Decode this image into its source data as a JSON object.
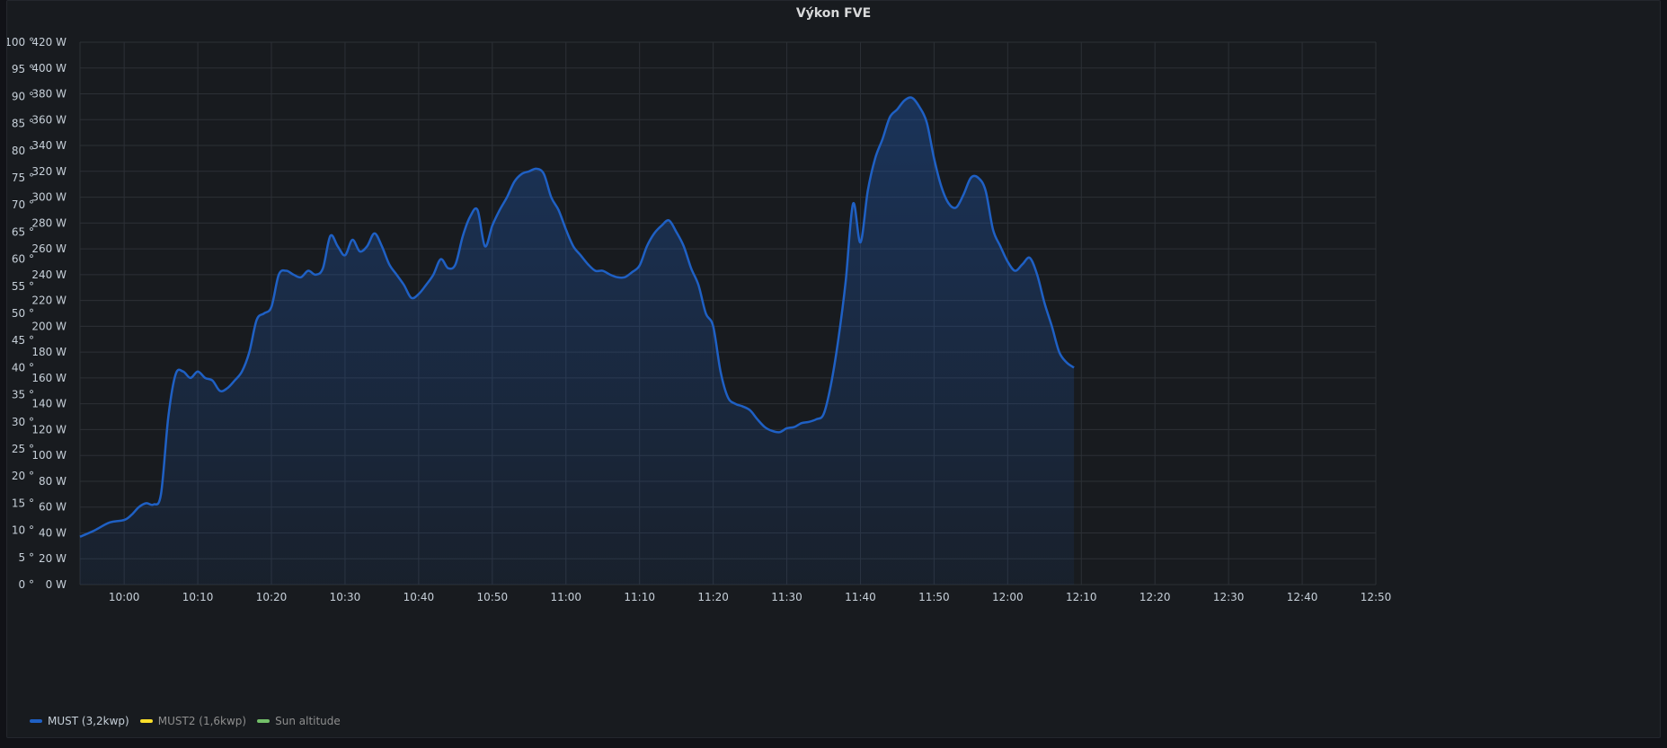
{
  "panel": {
    "title": "Výkon FVE"
  },
  "legend": [
    {
      "name": "MUST (3,2kwp)",
      "color": "#1f60c4",
      "active": true
    },
    {
      "name": "MUST2 (1,6kwp)",
      "color": "#fade2a",
      "active": false
    },
    {
      "name": "Sun altitude",
      "color": "#73bf69",
      "active": false
    }
  ],
  "chart_data": {
    "type": "area",
    "title": "Výkon FVE",
    "x_ticks": [
      "10:00",
      "10:10",
      "10:20",
      "10:30",
      "10:40",
      "10:50",
      "11:00",
      "11:10",
      "11:20",
      "11:30",
      "11:40",
      "11:50",
      "12:00",
      "12:10",
      "12:20",
      "12:30",
      "12:40",
      "12:50"
    ],
    "y_left": {
      "unit": "W",
      "ylim": [
        0,
        420
      ],
      "ticks": [
        0,
        20,
        40,
        60,
        80,
        100,
        120,
        140,
        160,
        180,
        200,
        220,
        240,
        260,
        280,
        300,
        320,
        340,
        360,
        380,
        400,
        420
      ]
    },
    "y_right": {
      "unit": "°",
      "ylim": [
        0,
        100
      ],
      "ticks": [
        0,
        5,
        10,
        15,
        20,
        25,
        30,
        35,
        40,
        45,
        50,
        55,
        60,
        65,
        70,
        75,
        80,
        85,
        90,
        95,
        100
      ]
    },
    "x_range": [
      "09:54",
      "12:50"
    ],
    "series": [
      {
        "name": "MUST (3,2kwp)",
        "color": "#1f60c4",
        "points": [
          [
            "09:54",
            37
          ],
          [
            "09:56",
            42
          ],
          [
            "09:58",
            48
          ],
          [
            "10:00",
            50
          ],
          [
            "10:01",
            54
          ],
          [
            "10:02",
            60
          ],
          [
            "10:03",
            63
          ],
          [
            "10:04",
            62
          ],
          [
            "10:05",
            70
          ],
          [
            "10:06",
            130
          ],
          [
            "10:07",
            163
          ],
          [
            "10:08",
            165
          ],
          [
            "10:09",
            160
          ],
          [
            "10:10",
            165
          ],
          [
            "10:11",
            160
          ],
          [
            "10:12",
            158
          ],
          [
            "10:13",
            150
          ],
          [
            "10:14",
            152
          ],
          [
            "10:15",
            158
          ],
          [
            "10:16",
            165
          ],
          [
            "10:17",
            180
          ],
          [
            "10:18",
            205
          ],
          [
            "10:19",
            210
          ],
          [
            "10:20",
            215
          ],
          [
            "10:21",
            240
          ],
          [
            "10:22",
            243
          ],
          [
            "10:23",
            240
          ],
          [
            "10:24",
            238
          ],
          [
            "10:25",
            243
          ],
          [
            "10:26",
            240
          ],
          [
            "10:27",
            245
          ],
          [
            "10:28",
            270
          ],
          [
            "10:29",
            262
          ],
          [
            "10:30",
            255
          ],
          [
            "10:31",
            267
          ],
          [
            "10:32",
            258
          ],
          [
            "10:33",
            262
          ],
          [
            "10:34",
            272
          ],
          [
            "10:35",
            262
          ],
          [
            "10:36",
            248
          ],
          [
            "10:37",
            240
          ],
          [
            "10:38",
            232
          ],
          [
            "10:39",
            222
          ],
          [
            "10:40",
            225
          ],
          [
            "10:41",
            232
          ],
          [
            "10:42",
            240
          ],
          [
            "10:43",
            252
          ],
          [
            "10:44",
            245
          ],
          [
            "10:45",
            248
          ],
          [
            "10:46",
            270
          ],
          [
            "10:47",
            285
          ],
          [
            "10:48",
            290
          ],
          [
            "10:49",
            262
          ],
          [
            "10:50",
            278
          ],
          [
            "10:51",
            290
          ],
          [
            "10:52",
            300
          ],
          [
            "10:53",
            312
          ],
          [
            "10:54",
            318
          ],
          [
            "10:55",
            320
          ],
          [
            "10:56",
            322
          ],
          [
            "10:57",
            318
          ],
          [
            "10:58",
            300
          ],
          [
            "10:59",
            290
          ],
          [
            "11:00",
            275
          ],
          [
            "11:01",
            262
          ],
          [
            "11:02",
            255
          ],
          [
            "11:03",
            248
          ],
          [
            "11:04",
            243
          ],
          [
            "11:05",
            243
          ],
          [
            "11:06",
            240
          ],
          [
            "11:07",
            238
          ],
          [
            "11:08",
            238
          ],
          [
            "11:09",
            242
          ],
          [
            "11:10",
            247
          ],
          [
            "11:11",
            262
          ],
          [
            "11:12",
            272
          ],
          [
            "11:13",
            278
          ],
          [
            "11:14",
            282
          ],
          [
            "11:15",
            273
          ],
          [
            "11:16",
            262
          ],
          [
            "11:17",
            245
          ],
          [
            "11:18",
            232
          ],
          [
            "11:19",
            210
          ],
          [
            "11:20",
            200
          ],
          [
            "11:21",
            165
          ],
          [
            "11:22",
            145
          ],
          [
            "11:23",
            140
          ],
          [
            "11:24",
            138
          ],
          [
            "11:25",
            135
          ],
          [
            "11:26",
            128
          ],
          [
            "11:27",
            122
          ],
          [
            "11:28",
            119
          ],
          [
            "11:29",
            118
          ],
          [
            "11:30",
            121
          ],
          [
            "11:31",
            122
          ],
          [
            "11:32",
            125
          ],
          [
            "11:33",
            126
          ],
          [
            "11:34",
            128
          ],
          [
            "11:35",
            132
          ],
          [
            "11:36",
            155
          ],
          [
            "11:37",
            190
          ],
          [
            "11:38",
            235
          ],
          [
            "11:39",
            295
          ],
          [
            "11:40",
            265
          ],
          [
            "11:41",
            305
          ],
          [
            "11:42",
            330
          ],
          [
            "11:43",
            345
          ],
          [
            "11:44",
            362
          ],
          [
            "11:45",
            368
          ],
          [
            "11:46",
            375
          ],
          [
            "11:47",
            377
          ],
          [
            "11:48",
            370
          ],
          [
            "11:49",
            358
          ],
          [
            "11:50",
            330
          ],
          [
            "11:51",
            308
          ],
          [
            "11:52",
            295
          ],
          [
            "11:53",
            292
          ],
          [
            "11:54",
            302
          ],
          [
            "11:55",
            315
          ],
          [
            "11:56",
            315
          ],
          [
            "11:57",
            305
          ],
          [
            "11:58",
            275
          ],
          [
            "11:59",
            262
          ],
          [
            "12:00",
            250
          ],
          [
            "12:01",
            243
          ],
          [
            "12:02",
            248
          ],
          [
            "12:03",
            253
          ],
          [
            "12:04",
            240
          ],
          [
            "12:05",
            218
          ],
          [
            "12:06",
            200
          ],
          [
            "12:07",
            180
          ],
          [
            "12:08",
            172
          ],
          [
            "12:09",
            168
          ]
        ]
      }
    ]
  }
}
